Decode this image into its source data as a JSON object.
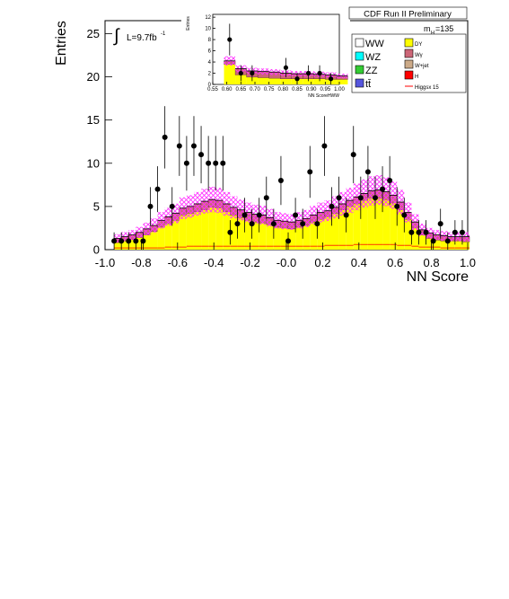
{
  "header": {
    "experiment": "CDF Run II Preliminary",
    "mass_label": "m",
    "mass_sub": "H",
    "mass_value": "=135"
  },
  "luminosity": {
    "prefix": "L=9.7fb",
    "exponent": "-1"
  },
  "integral_symbol": "∫",
  "legend": {
    "left": [
      {
        "label": "WW",
        "color": "#ffffff"
      },
      {
        "label": "WZ",
        "color": "#00ffff"
      },
      {
        "label": "ZZ",
        "color": "#33cc33"
      },
      {
        "label": "tt̄",
        "color": "#5555dd"
      }
    ],
    "right": [
      {
        "label": "DY",
        "color": "#ffff00"
      },
      {
        "label": "Wγ",
        "color": "#cc6677"
      },
      {
        "label": "W+jet",
        "color": "#ccaa88"
      },
      {
        "label": "H",
        "color": "#ff0000"
      },
      {
        "label": "Higgsx 15",
        "color": "#ff0000"
      }
    ]
  },
  "colors": {
    "dy": "#ffff00",
    "wgamma": "#cc6677",
    "band": "#ff33ff",
    "signal": "#ff0000",
    "data": "#000000"
  },
  "chart_data": [
    {
      "type": "bar",
      "xlabel": "NN Score",
      "ylabel": "Entries",
      "xlim": [
        -1.0,
        1.0
      ],
      "ylim": [
        0,
        26.5
      ],
      "xticks": [
        "-1.0",
        "-0.8",
        "-0.6",
        "-0.4",
        "-0.2",
        "-0.0",
        "0.2",
        "0.4",
        "0.6",
        "0.8",
        "1.0"
      ],
      "yticks": [
        "0",
        "5",
        "10",
        "15",
        "20",
        "25"
      ],
      "bin_edges_start": -0.95,
      "bin_width": 0.04,
      "background_total": [
        1.3,
        1.5,
        1.7,
        2.0,
        2.4,
        2.8,
        3.4,
        3.8,
        4.2,
        4.8,
        5.0,
        5.3,
        5.6,
        5.8,
        5.7,
        5.3,
        4.9,
        4.6,
        4.3,
        4.1,
        4.0,
        3.7,
        3.4,
        3.3,
        3.2,
        3.4,
        3.6,
        4.0,
        4.3,
        4.5,
        4.9,
        5.3,
        5.7,
        6.1,
        6.5,
        6.8,
        6.9,
        6.7,
        6.3,
        5.5,
        4.3,
        3.2,
        2.3,
        1.9,
        1.7,
        1.6,
        1.5,
        1.5,
        1.5
      ],
      "dy_yellow": [
        0.8,
        1.0,
        1.2,
        1.4,
        1.7,
        2.1,
        2.6,
        3.0,
        3.4,
        4.0,
        4.2,
        4.4,
        4.6,
        4.9,
        4.8,
        4.4,
        4.0,
        3.7,
        3.4,
        3.2,
        3.1,
        2.9,
        2.6,
        2.5,
        2.4,
        2.6,
        2.8,
        3.2,
        3.5,
        3.8,
        4.2,
        4.6,
        5.0,
        5.3,
        5.7,
        6.0,
        6.0,
        5.8,
        5.4,
        4.6,
        3.5,
        2.5,
        1.7,
        1.3,
        1.1,
        1.0,
        1.0,
        1.0,
        0.9
      ],
      "data_x": [
        -0.95,
        -0.91,
        -0.87,
        -0.83,
        -0.79,
        -0.75,
        -0.71,
        -0.67,
        -0.63,
        -0.59,
        -0.55,
        -0.51,
        -0.47,
        -0.43,
        -0.39,
        -0.35,
        -0.31,
        -0.27,
        -0.23,
        -0.19,
        -0.15,
        -0.11,
        -0.07,
        -0.03,
        0.01,
        0.05,
        0.09,
        0.13,
        0.17,
        0.21,
        0.25,
        0.29,
        0.33,
        0.37,
        0.41,
        0.45,
        0.49,
        0.53,
        0.57,
        0.61,
        0.65,
        0.69,
        0.73,
        0.77,
        0.81,
        0.85,
        0.89,
        0.93,
        0.97
      ],
      "data_y": [
        1,
        1,
        1,
        1,
        1,
        5,
        7,
        13,
        5,
        12,
        10,
        12,
        11,
        10,
        10,
        10,
        2,
        3,
        4,
        3,
        4,
        6,
        3,
        8,
        1,
        4,
        3,
        9,
        3,
        12,
        5,
        6,
        4,
        11,
        6,
        9,
        6,
        7,
        8,
        5,
        4,
        2,
        2,
        2,
        1,
        3,
        1,
        2,
        2
      ],
      "signal_line": [
        0.2,
        0.2,
        0.2,
        0.2,
        0.2,
        0.2,
        0.2,
        0.3,
        0.3,
        0.3,
        0.4,
        0.4,
        0.4,
        0.4,
        0.4,
        0.4,
        0.4,
        0.4,
        0.4,
        0.4,
        0.4,
        0.4,
        0.4,
        0.4,
        0.4,
        0.4,
        0.4,
        0.4,
        0.4,
        0.5,
        0.5,
        0.5,
        0.5,
        0.6,
        0.6,
        0.6,
        0.6,
        0.6,
        0.6,
        0.5,
        0.5,
        0.4,
        0.3,
        0.3,
        0.3,
        0.2,
        0.2,
        0.2,
        0.2
      ]
    },
    {
      "type": "bar",
      "xlabel": "NN ScoreHWW",
      "ylabel": "Entries",
      "xlim": [
        0.55,
        1.0
      ],
      "ylim": [
        0,
        12.5
      ],
      "xticks": [
        "0.55",
        "0.60",
        "0.65",
        "0.70",
        "0.75",
        "0.80",
        "0.85",
        "0.90",
        "0.95",
        "1.00"
      ],
      "yticks": [
        "0",
        "2",
        "4",
        "6",
        "8",
        "10",
        "12"
      ],
      "bin_edges_start": 0.59,
      "bin_width": 0.04,
      "background_total": [
        4.2,
        2.8,
        2.4,
        2.3,
        2.2,
        2.0,
        1.9,
        1.9,
        1.8,
        1.7,
        1.5
      ],
      "dy_yellow": [
        3.6,
        1.7,
        1.3,
        1.2,
        1.1,
        1.0,
        1.0,
        1.0,
        1.0,
        0.9,
        0.9
      ],
      "data_x": [
        0.61,
        0.65,
        0.69,
        0.81,
        0.85,
        0.89,
        0.93,
        0.97
      ],
      "data_y": [
        8,
        2,
        2,
        3,
        1,
        2,
        2,
        1
      ]
    }
  ]
}
